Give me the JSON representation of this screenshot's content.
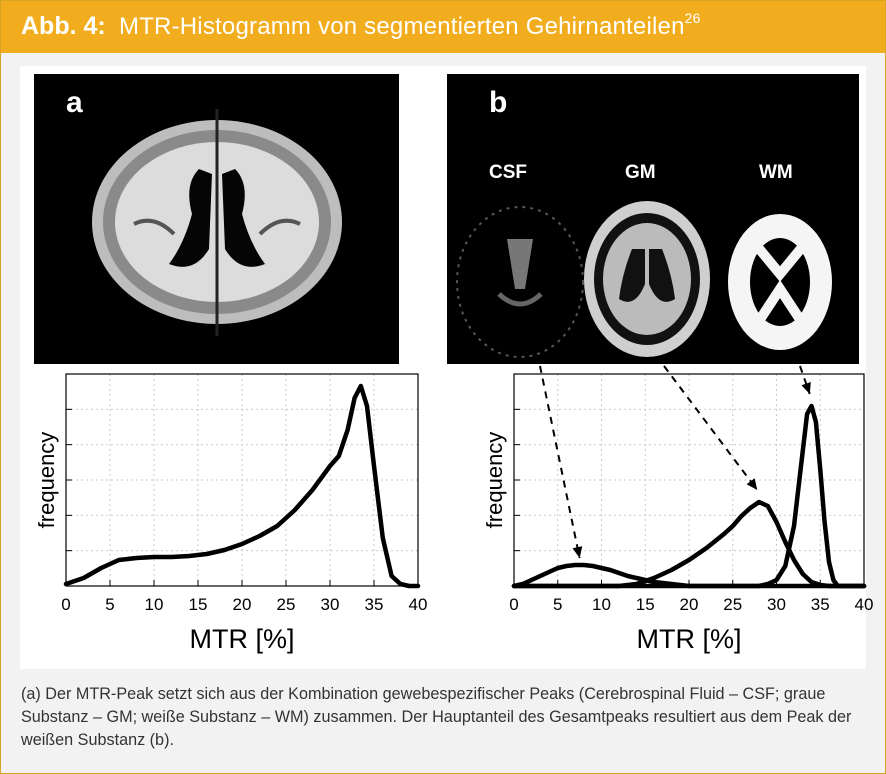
{
  "header": {
    "label": "Abb. 4:",
    "title": "MTR-Histogramm von segmentierten Gehirnanteilen",
    "superscript": "26"
  },
  "panel_a": {
    "label": "a"
  },
  "panel_b": {
    "label": "b",
    "tissue_labels": [
      "CSF",
      "GM",
      "WM"
    ]
  },
  "caption": "(a) Der MTR-Peak setzt sich aus der Kombination gewebespezifischer Peaks (Cerebrospinal Fluid – CSF; graue Substanz – GM; weiße Substanz – WM) zusammen. Der Hauptanteil des Gesamtpeaks resultiert aus dem Peak der weißen Substanz (b).",
  "colors": {
    "header_bg": "#f2ad1e",
    "frame_bg": "#f2f2f2",
    "curve": "#000000"
  },
  "chart_data": [
    {
      "type": "line",
      "panel": "a",
      "xlabel": "MTR [%]",
      "ylabel": "frequency",
      "xlim": [
        0,
        40
      ],
      "xticks": [
        0,
        5,
        10,
        15,
        20,
        25,
        30,
        35,
        40
      ],
      "grid": true,
      "series": [
        {
          "x": [
            0,
            2,
            4,
            6,
            8,
            10,
            12,
            14,
            16,
            18,
            20,
            22,
            24,
            26,
            28,
            29,
            30,
            31,
            32,
            32.8,
            33.5,
            34.2,
            35,
            36,
            37,
            38,
            39,
            40
          ],
          "y": [
            0.01,
            0.04,
            0.09,
            0.13,
            0.14,
            0.145,
            0.145,
            0.15,
            0.16,
            0.18,
            0.21,
            0.25,
            0.3,
            0.38,
            0.48,
            0.54,
            0.6,
            0.65,
            0.78,
            0.94,
            1.0,
            0.9,
            0.6,
            0.24,
            0.05,
            0.01,
            0.0,
            0.0
          ]
        }
      ]
    },
    {
      "type": "line",
      "panel": "b",
      "xlabel": "MTR [%]",
      "ylabel": "frequency",
      "xlim": [
        0,
        40
      ],
      "xticks": [
        0,
        5,
        10,
        15,
        20,
        25,
        30,
        35,
        40
      ],
      "grid": true,
      "series": [
        {
          "x": [
            0,
            1,
            2,
            3,
            4,
            5,
            6,
            7,
            8,
            9,
            10,
            11,
            12,
            13,
            14,
            15,
            16,
            17,
            18,
            19,
            20,
            22,
            24,
            26,
            28,
            30,
            32,
            34,
            36,
            38,
            40
          ],
          "y": [
            0.0,
            0.01,
            0.03,
            0.05,
            0.07,
            0.09,
            0.1,
            0.105,
            0.105,
            0.1,
            0.09,
            0.08,
            0.065,
            0.05,
            0.04,
            0.03,
            0.02,
            0.015,
            0.01,
            0.005,
            0.0,
            0.0,
            0.0,
            0.0,
            0.0,
            0.0,
            0.0,
            0.0,
            0.0,
            0.0,
            0.0
          ]
        },
        {
          "x": [
            0,
            8,
            12,
            14,
            16,
            18,
            20,
            22,
            24,
            25,
            26,
            27,
            28,
            29,
            30,
            31,
            32,
            33,
            34,
            35,
            36,
            40
          ],
          "y": [
            0.0,
            0.0,
            0.0,
            0.01,
            0.04,
            0.08,
            0.13,
            0.19,
            0.26,
            0.3,
            0.35,
            0.39,
            0.42,
            0.4,
            0.32,
            0.22,
            0.13,
            0.06,
            0.02,
            0.005,
            0.0,
            0.0
          ]
        },
        {
          "x": [
            0,
            28,
            29,
            30,
            31,
            32,
            32.8,
            33.5,
            34,
            34.5,
            35,
            35.5,
            36,
            36.5,
            37,
            40
          ],
          "y": [
            0.0,
            0.0,
            0.01,
            0.03,
            0.1,
            0.3,
            0.6,
            0.86,
            0.9,
            0.82,
            0.58,
            0.32,
            0.12,
            0.03,
            0.0,
            0.0
          ]
        }
      ],
      "annotations": [
        {
          "from_label": "CSF",
          "to": [
            7.5,
            0.11
          ]
        },
        {
          "from_label": "GM",
          "to": [
            27.8,
            0.45
          ]
        },
        {
          "from_label": "WM",
          "to": [
            33.8,
            0.93
          ]
        }
      ]
    }
  ]
}
